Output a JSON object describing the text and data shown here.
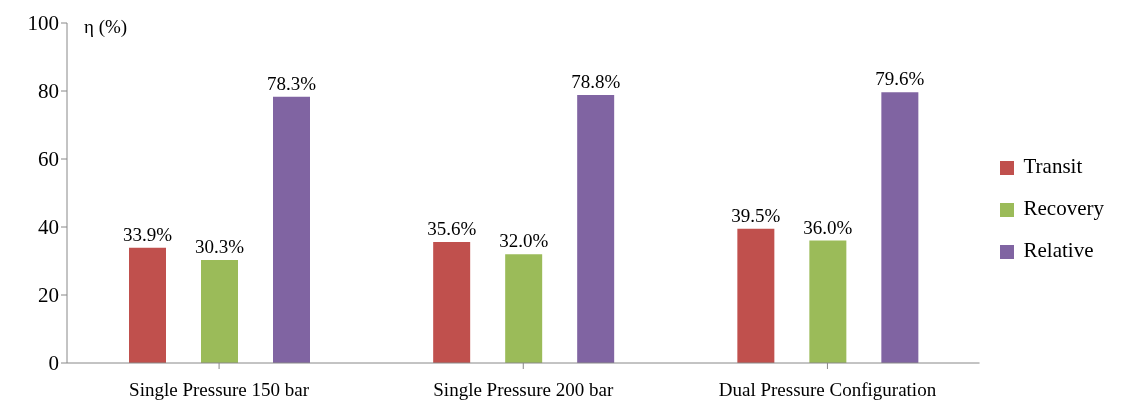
{
  "chart_data": {
    "type": "bar",
    "ylabel": "η (%)",
    "categories": [
      "Single Pressure 150 bar",
      "Single Pressure 200 bar",
      "Dual Pressure Configuration"
    ],
    "series": [
      {
        "name": "Transit",
        "color": "#c0504d",
        "values": [
          33.9,
          35.6,
          39.5
        ],
        "value_labels": [
          "33.9%",
          "35.6%",
          "39.5%"
        ]
      },
      {
        "name": "Recovery",
        "color": "#9bbb59",
        "values": [
          30.3,
          32.0,
          36.0
        ],
        "value_labels": [
          "30.3%",
          "32.0%",
          "36.0%"
        ]
      },
      {
        "name": "Relative",
        "color": "#8064a2",
        "values": [
          78.3,
          78.8,
          79.6
        ],
        "value_labels": [
          "78.3%",
          "78.8%",
          "79.6%"
        ]
      }
    ],
    "ylim": [
      0,
      100
    ],
    "yticks": [
      0,
      20,
      40,
      60,
      80,
      100
    ],
    "grid": false,
    "legend": "right"
  }
}
